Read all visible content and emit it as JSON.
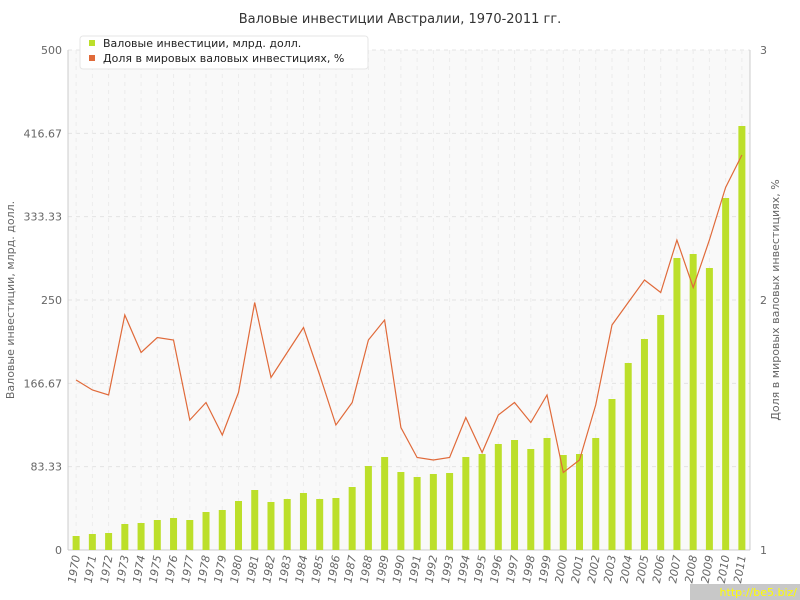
{
  "chart_data": {
    "type": "bar",
    "title": "Валовые инвестиции Австралии, 1970-2011 гг.",
    "categories": [
      "1970",
      "1971",
      "1972",
      "1973",
      "1974",
      "1975",
      "1976",
      "1977",
      "1978",
      "1979",
      "1980",
      "1981",
      "1982",
      "1983",
      "1984",
      "1985",
      "1986",
      "1987",
      "1988",
      "1989",
      "1990",
      "1991",
      "1992",
      "1993",
      "1994",
      "1995",
      "1996",
      "1997",
      "1998",
      "1999",
      "2000",
      "2001",
      "2002",
      "2003",
      "2004",
      "2005",
      "2006",
      "2007",
      "2008",
      "2009",
      "2010",
      "2011"
    ],
    "series": [
      {
        "name": "Валовые инвестиции, млрд. долл.",
        "type": "bar",
        "axis": "left",
        "color": "#bcdf2a",
        "values": [
          14,
          16,
          17,
          26,
          27,
          30,
          32,
          30,
          38,
          40,
          49,
          60,
          48,
          51,
          57,
          51,
          52,
          63,
          84,
          93,
          78,
          73,
          76,
          77,
          93,
          96,
          106,
          110,
          101,
          112,
          95,
          96,
          112,
          151,
          187,
          211,
          235,
          292,
          296,
          282,
          352,
          424
        ]
      },
      {
        "name": "Доля в мировых валовых инвестициях, %",
        "type": "line",
        "axis": "right",
        "color": "#e06a3a",
        "values": [
          1.68,
          1.64,
          1.62,
          1.94,
          1.79,
          1.85,
          1.84,
          1.52,
          1.59,
          1.46,
          1.63,
          1.99,
          1.69,
          1.79,
          1.89,
          1.7,
          1.5,
          1.59,
          1.84,
          1.92,
          1.49,
          1.37,
          1.36,
          1.37,
          1.53,
          1.39,
          1.54,
          1.59,
          1.51,
          1.62,
          1.31,
          1.36,
          1.58,
          1.9,
          1.99,
          2.08,
          2.03,
          2.24,
          2.05,
          2.24,
          2.45,
          2.58
        ]
      }
    ],
    "ylabel": "Валовые инвестиции, млрд. долл.",
    "ylabel_right": "Доля в мировых валовых инвестициях, %",
    "ylim": [
      0,
      500
    ],
    "ylim_right": [
      1,
      3
    ],
    "y_ticks": [
      "0",
      "83.33",
      "166.67",
      "250",
      "333.33",
      "416.67",
      "500"
    ],
    "y_ticks_right": [
      "1",
      "2",
      "3"
    ],
    "grid": true,
    "legend_position": "top-left"
  },
  "watermark": "http://be5.biz/"
}
